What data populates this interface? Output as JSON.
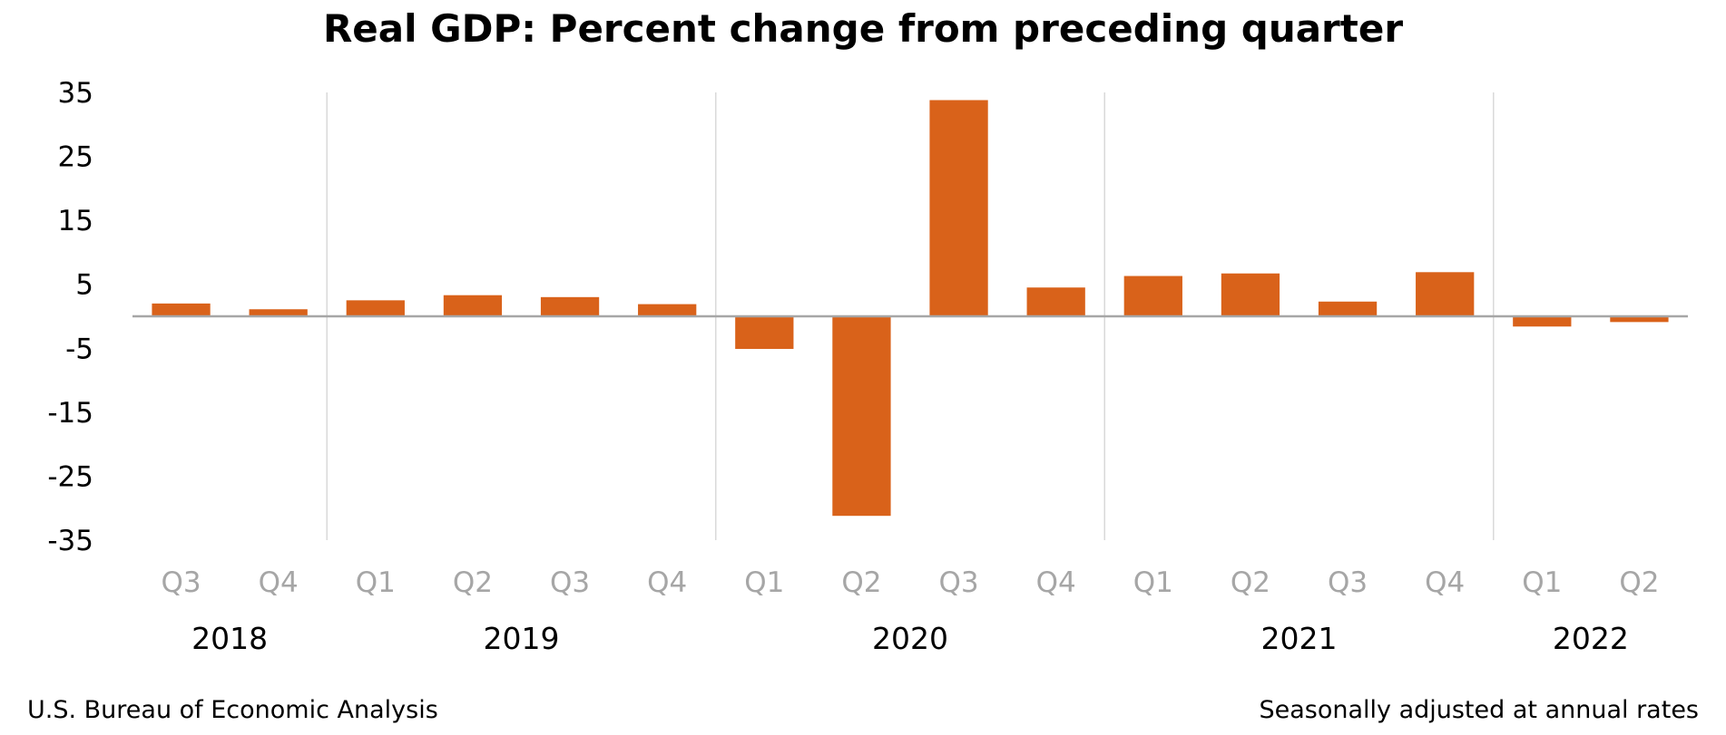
{
  "chart_data": {
    "type": "bar",
    "title": "Real GDP:  Percent change from preceding quarter",
    "categories": [
      "Q3",
      "Q4",
      "Q1",
      "Q2",
      "Q3",
      "Q4",
      "Q1",
      "Q2",
      "Q3",
      "Q4",
      "Q1",
      "Q2",
      "Q3",
      "Q4",
      "Q1",
      "Q2"
    ],
    "years": [
      {
        "label": "2018",
        "quarters": 2
      },
      {
        "label": "2019",
        "quarters": 4
      },
      {
        "label": "2020",
        "quarters": 4
      },
      {
        "label": "2021",
        "quarters": 4
      },
      {
        "label": "2022",
        "quarters": 2
      }
    ],
    "values": [
      2.0,
      1.1,
      2.5,
      3.3,
      3.0,
      1.9,
      -5.1,
      -31.2,
      33.8,
      4.5,
      6.3,
      6.7,
      2.3,
      6.9,
      -1.6,
      -0.9
    ],
    "ylim": [
      -35,
      35
    ],
    "yticks": [
      "35",
      "25",
      "15",
      "5",
      "-5",
      "-15",
      "-25",
      "-35"
    ],
    "ytick_values": [
      35,
      25,
      15,
      5,
      -5,
      -15,
      -25,
      -35
    ],
    "xlabel": "",
    "ylabel": "",
    "bar_color": "#d9621a",
    "zero_line_color": "#a6a6a6",
    "separator_color": "#d9d9d9",
    "grid": false,
    "legend": "none"
  },
  "footer": {
    "source": "U.S. Bureau of Economic Analysis",
    "note": "Seasonally adjusted at annual rates"
  }
}
